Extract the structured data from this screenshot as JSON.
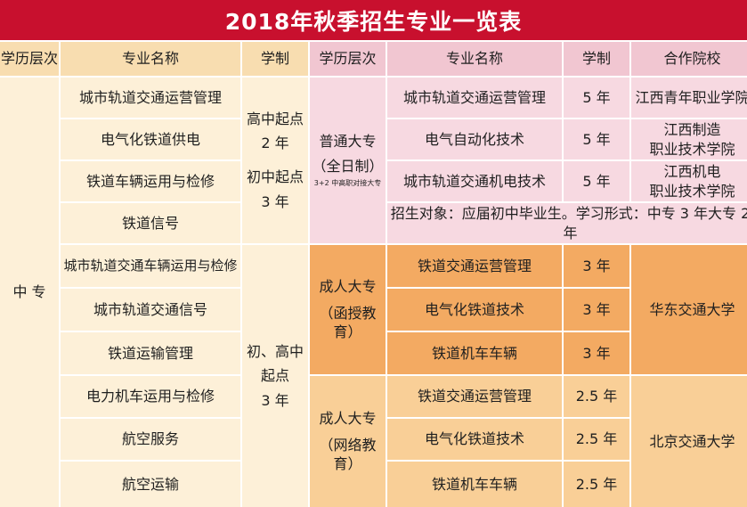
{
  "title": "2018年秋季招生专业一览表",
  "headers": {
    "left_level": "学历层次",
    "left_major": "专业名称",
    "left_years": "学制",
    "right_level": "学历层次",
    "right_major": "专业名称",
    "right_years": "学制",
    "right_school": "合作院校"
  },
  "zhongzhuan": {
    "level": "中 专",
    "majors_group1": [
      "城市轨道交通运营管理",
      "电气化铁道供电",
      "铁道车辆运用与检修",
      "铁道信号"
    ],
    "years_group1": [
      "高中起点",
      "2 年",
      "初中起点",
      "3 年"
    ],
    "majors_group2": [
      "城市轨道交通车辆运用与检修",
      "城市轨道交通信号",
      "铁道运输管理",
      "电力机车运用与检修",
      "航空服务",
      "航空运输"
    ],
    "years_group2": [
      "初、高中",
      "起点",
      "3 年"
    ]
  },
  "dazhuan": {
    "level_lines": [
      "普通大专",
      "（全日制）"
    ],
    "level_note": "3+2 中高职对接大专",
    "programs": [
      {
        "major": "城市轨道交通运营管理",
        "years": "5 年",
        "school_lines": [
          "江西青年职业学院"
        ]
      },
      {
        "major": "电气自动化技术",
        "years": "5 年",
        "school_lines": [
          "江西制造",
          "职业技术学院"
        ]
      },
      {
        "major": "城市轨道交通机电技术",
        "years": "5 年",
        "school_lines": [
          "江西机电",
          "职业技术学院"
        ]
      }
    ],
    "note": "招生对象：应届初中毕业生。学习形式：中专 3 年大专 2 年"
  },
  "adult_correspondence": {
    "level_lines": [
      "成人大专",
      "（函授教育）"
    ],
    "majors": [
      "铁道交通运营管理",
      "电气化铁道技术",
      "铁道机车车辆"
    ],
    "years": [
      "3 年",
      "3 年",
      "3 年"
    ],
    "school": "华东交通大学"
  },
  "adult_online": {
    "level_lines": [
      "成人大专",
      "（网络教育）"
    ],
    "majors": [
      "铁道交通运营管理",
      "电气化铁道技术",
      "铁道机车车辆"
    ],
    "years": [
      "2.5 年",
      "2.5 年",
      "2.5 年"
    ],
    "school": "北京交通大学"
  },
  "colors": {
    "title_bg": "#c8102e",
    "header_cream": "#f8ddb0",
    "header_pink": "#f1c6d1",
    "cell_cream": "#fdf0d8",
    "cell_pink": "#f7d9e1",
    "cell_orange_dark": "#f3aa62",
    "cell_orange": "#f9cf97"
  }
}
